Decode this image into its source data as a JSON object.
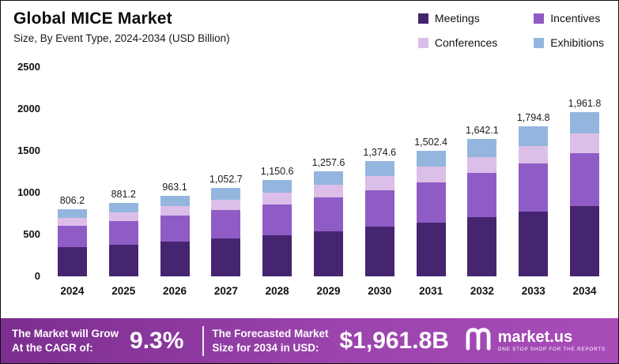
{
  "header": {
    "title": "Global MICE Market",
    "subtitle": "Size, By Event Type, 2024-2034 (USD Billion)"
  },
  "legend": [
    {
      "label": "Meetings",
      "color": "#452570"
    },
    {
      "label": "Incentives",
      "color": "#8f5cc5"
    },
    {
      "label": "Conferences",
      "color": "#dcbfe9"
    },
    {
      "label": "Exhibitions",
      "color": "#94b6de"
    }
  ],
  "chart_data": {
    "type": "bar",
    "stacked": true,
    "title": "Global MICE Market Size, By Event Type, 2024-2034 (USD Billion)",
    "categories": [
      "2024",
      "2025",
      "2026",
      "2027",
      "2028",
      "2029",
      "2030",
      "2031",
      "2032",
      "2033",
      "2034"
    ],
    "series": [
      {
        "name": "Meetings",
        "color": "#452570",
        "values": [
          346.7,
          378.9,
          414.1,
          452.6,
          494.7,
          540.8,
          591.0,
          646.0,
          706.1,
          771.8,
          843.6
        ]
      },
      {
        "name": "Incentives",
        "color": "#8f5cc5",
        "values": [
          258.0,
          282.0,
          308.2,
          336.9,
          368.2,
          402.4,
          439.9,
          480.8,
          525.5,
          574.3,
          627.8
        ]
      },
      {
        "name": "Conferences",
        "color": "#dcbfe9",
        "values": [
          96.7,
          105.7,
          115.6,
          126.3,
          138.1,
          150.9,
          165.0,
          180.3,
          197.1,
          215.4,
          235.4
        ]
      },
      {
        "name": "Exhibitions",
        "color": "#94b6de",
        "values": [
          104.8,
          114.6,
          125.2,
          136.9,
          149.6,
          163.5,
          178.7,
          195.3,
          213.4,
          233.3,
          255.0
        ]
      }
    ],
    "totals": [
      806.2,
      881.2,
      963.1,
      1052.7,
      1150.6,
      1257.6,
      1374.6,
      1502.4,
      1642.1,
      1794.8,
      1961.8
    ],
    "total_labels": [
      "806.2",
      "881.2",
      "963.1",
      "1,052.7",
      "1,150.6",
      "1,257.6",
      "1,374.6",
      "1,502.4",
      "1,642.1",
      "1,794.8",
      "1,961.8"
    ],
    "xlabel": "",
    "ylabel": "",
    "ylim": [
      0,
      2500
    ],
    "yticks": [
      0,
      500,
      1000,
      1500,
      2000,
      2500
    ],
    "grid": false,
    "legend_position": "top-right"
  },
  "footer": {
    "cagr_label_line1": "The Market will Grow",
    "cagr_label_line2": "At the CAGR of:",
    "cagr_value": "9.3%",
    "forecast_label_line1": "The Forecasted Market",
    "forecast_label_line2": "Size for 2034 in USD:",
    "forecast_value": "$1,961.8B",
    "brand": "market.us",
    "brand_tagline": "One Stop Shop For The Reports"
  }
}
